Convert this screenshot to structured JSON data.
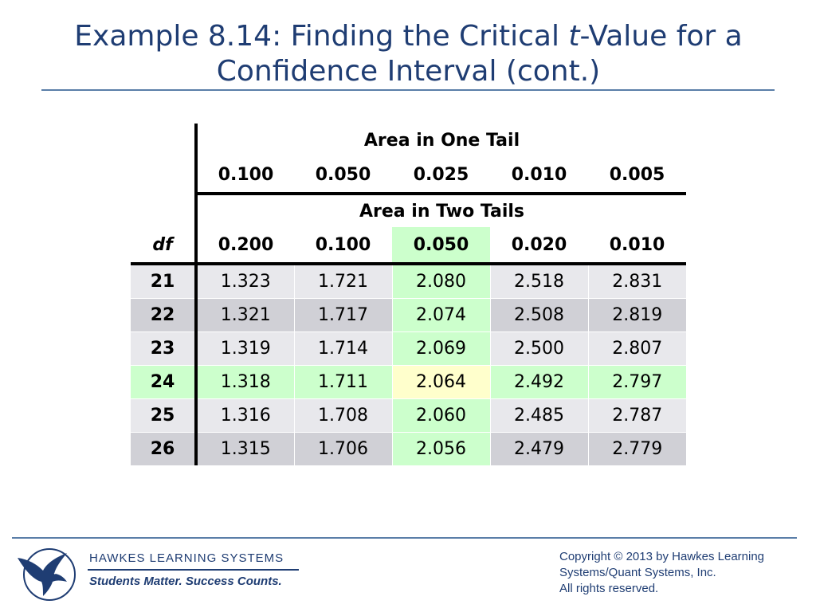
{
  "title": {
    "line1_prefix": "Example 8.14: Finding the Critical ",
    "line1_italic": "t",
    "line1_suffix": "-Value for a",
    "line2": "Confidence Interval (cont.)"
  },
  "table": {
    "one_tail_label": "Area in One Tail",
    "one_tail_values": [
      "0.100",
      "0.050",
      "0.025",
      "0.010",
      "0.005"
    ],
    "two_tail_label": "Area in Two Tails",
    "df_label": "df",
    "two_tail_values": [
      "0.200",
      "0.100",
      "0.050",
      "0.020",
      "0.010"
    ],
    "rows": [
      {
        "df": "21",
        "values": [
          "1.323",
          "1.721",
          "2.080",
          "2.518",
          "2.831"
        ]
      },
      {
        "df": "22",
        "values": [
          "1.321",
          "1.717",
          "2.074",
          "2.508",
          "2.819"
        ]
      },
      {
        "df": "23",
        "values": [
          "1.319",
          "1.714",
          "2.069",
          "2.500",
          "2.807"
        ]
      },
      {
        "df": "24",
        "values": [
          "1.318",
          "1.711",
          "2.064",
          "2.492",
          "2.797"
        ]
      },
      {
        "df": "25",
        "values": [
          "1.316",
          "1.708",
          "2.060",
          "2.485",
          "2.787"
        ]
      },
      {
        "df": "26",
        "values": [
          "1.315",
          "1.706",
          "2.056",
          "2.479",
          "2.779"
        ]
      }
    ],
    "highlight_color": "#ccffcc",
    "highlight_cell_color": "#ffffcc"
  },
  "footer": {
    "company": "HAWKES  LEARNING  SYSTEMS",
    "tagline": "Students Matter. Success Counts.",
    "copyright_lines": [
      "Copyright © 2013 by Hawkes Learning",
      "Systems/Quant Systems, Inc.",
      "All rights reserved."
    ],
    "logo_icon": "eagle-logo-icon"
  }
}
